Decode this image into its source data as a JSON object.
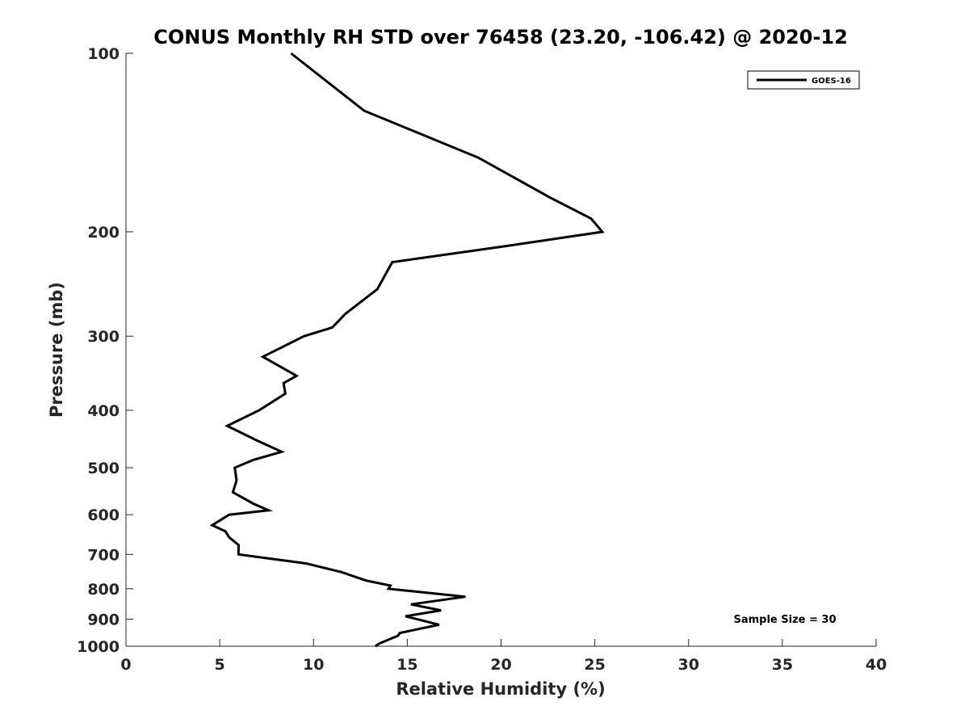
{
  "chart_data": {
    "type": "line",
    "title": "CONUS Monthly RH STD over 76458 (23.20, -106.42) @ 2020-12",
    "xlabel": "Relative Humidity (%)",
    "ylabel": "Pressure (mb)",
    "xlim": [
      0,
      40
    ],
    "ylim": [
      100,
      1000
    ],
    "y_scale": "log",
    "y_reversed": true,
    "x_ticks": [
      0,
      5,
      10,
      15,
      20,
      25,
      30,
      35,
      40
    ],
    "x_tick_labels": [
      "0",
      "5",
      "10",
      "15",
      "20",
      "25",
      "30",
      "35",
      "40"
    ],
    "y_ticks": [
      100,
      200,
      300,
      400,
      500,
      600,
      700,
      800,
      900,
      1000
    ],
    "y_tick_labels": [
      "100",
      "200",
      "300",
      "400",
      "500",
      "600",
      "700",
      "800",
      "900",
      "1000"
    ],
    "grid": false,
    "legend_position": "top-right",
    "annotation": "Sample Size = 30",
    "series": [
      {
        "name": "GOES-16",
        "color": "#000000",
        "points": [
          [
            8.8,
            100
          ],
          [
            12.7,
            125
          ],
          [
            18.8,
            150
          ],
          [
            22.6,
            175
          ],
          [
            24.8,
            190
          ],
          [
            25.4,
            200
          ],
          [
            20.0,
            212
          ],
          [
            14.2,
            225
          ],
          [
            13.4,
            250
          ],
          [
            11.7,
            275
          ],
          [
            11.0,
            290
          ],
          [
            9.5,
            300
          ],
          [
            7.3,
            325
          ],
          [
            9.1,
            350
          ],
          [
            8.4,
            360
          ],
          [
            8.5,
            375
          ],
          [
            7.1,
            400
          ],
          [
            5.4,
            425
          ],
          [
            7.0,
            450
          ],
          [
            8.3,
            470
          ],
          [
            6.8,
            485
          ],
          [
            5.8,
            500
          ],
          [
            5.9,
            525
          ],
          [
            5.7,
            550
          ],
          [
            6.8,
            575
          ],
          [
            7.6,
            590
          ],
          [
            5.5,
            600
          ],
          [
            4.6,
            625
          ],
          [
            5.3,
            640
          ],
          [
            5.5,
            655
          ],
          [
            6.0,
            675
          ],
          [
            6.0,
            700
          ],
          [
            9.6,
            725
          ],
          [
            11.5,
            750
          ],
          [
            12.8,
            775
          ],
          [
            14.1,
            790
          ],
          [
            14.0,
            800
          ],
          [
            18.1,
            825
          ],
          [
            15.2,
            850
          ],
          [
            16.8,
            870
          ],
          [
            14.9,
            890
          ],
          [
            16.7,
            920
          ],
          [
            14.6,
            950
          ],
          [
            14.5,
            960
          ],
          [
            13.5,
            990
          ],
          [
            13.3,
            1000
          ]
        ]
      }
    ]
  }
}
